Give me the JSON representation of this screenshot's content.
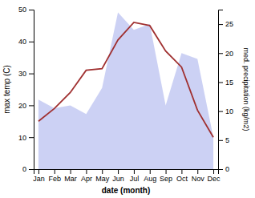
{
  "chart_data": {
    "type": "line",
    "categories": [
      "Jan",
      "Feb",
      "Mar",
      "Apr",
      "May",
      "Jun",
      "Jul",
      "Aug",
      "Sep",
      "Oct",
      "Nov",
      "Dec"
    ],
    "series": [
      {
        "type": "area",
        "axis": "y2",
        "color": "#b0b8ee",
        "values": [
          12.0,
          10.5,
          11.0,
          9.5,
          14.0,
          27.0,
          24.0,
          25.0,
          11.0,
          20.0,
          19.0,
          5.5
        ]
      },
      {
        "type": "line",
        "color": "#a03030",
        "values": [
          15.0,
          19.0,
          24.0,
          31.0,
          31.5,
          40.5,
          46.0,
          45.0,
          37.0,
          32.0,
          18.5,
          10.0
        ]
      }
    ],
    "xlabel": "date (month)",
    "ylabel": "max temp (C)",
    "y2label": "med. precipitation (kg/m2)",
    "ylim": [
      0,
      50
    ],
    "yticks": [
      0,
      10,
      20,
      30,
      40,
      50
    ],
    "y2lim": [
      0,
      27.5
    ],
    "y2ticks": [
      0,
      5,
      10,
      15,
      20,
      25
    ],
    "grid": false
  }
}
